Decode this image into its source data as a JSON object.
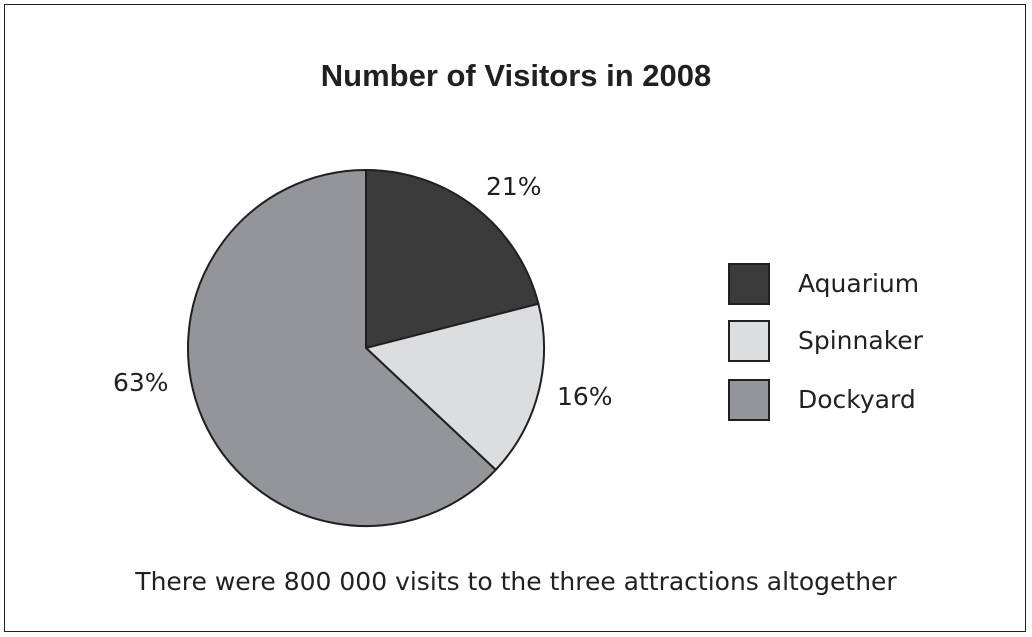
{
  "chart_data": {
    "type": "pie",
    "title": "Number of Visitors in 2008",
    "slices": [
      {
        "name": "Aquarium",
        "value": 21,
        "label": "21%",
        "color": "#3b3b3c"
      },
      {
        "name": "Spinnaker",
        "value": 16,
        "label": "16%",
        "color": "#dcddde"
      },
      {
        "name": "Dockyard",
        "value": 63,
        "label": "63%",
        "color": "#939598"
      }
    ],
    "legend_position": "right",
    "note": "There were 800 000 visits to the three attractions altogether"
  }
}
